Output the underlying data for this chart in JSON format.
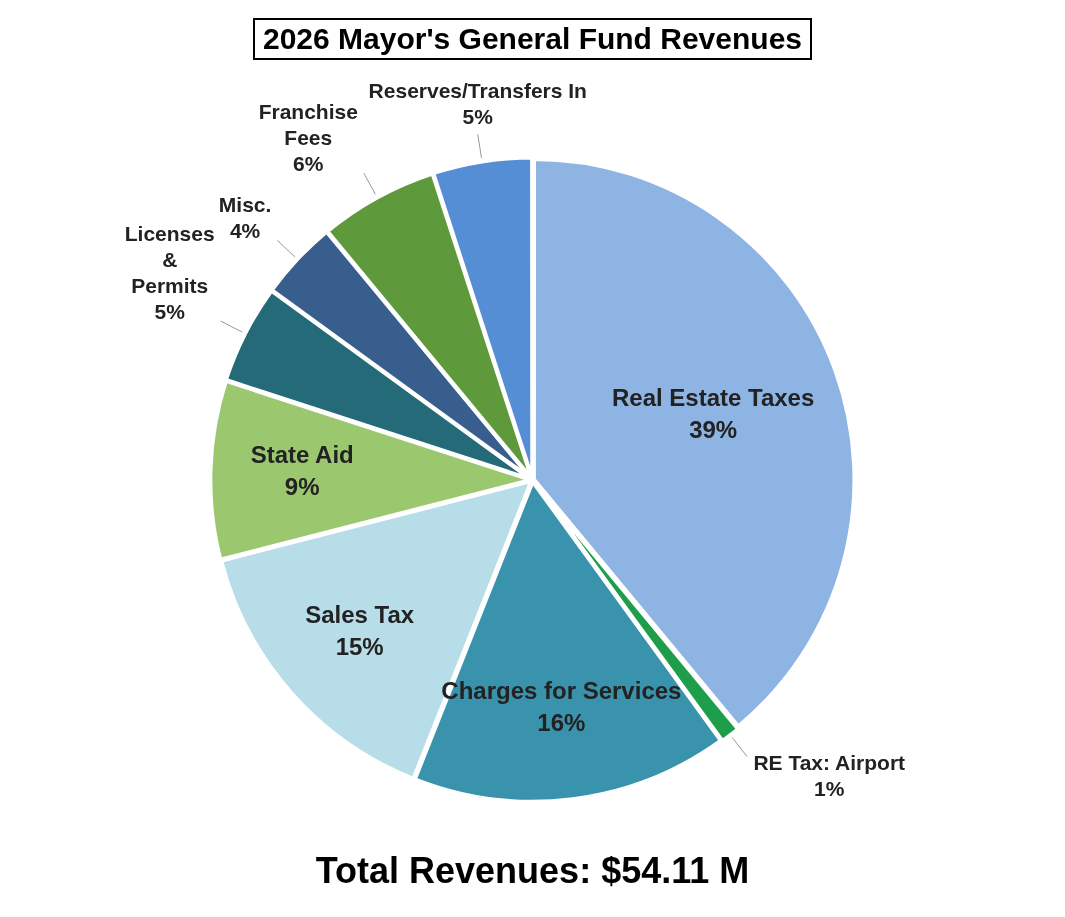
{
  "chart_data": {
    "type": "pie",
    "title": "2026 Mayor's General Fund Revenues",
    "categories": [
      "Real Estate Taxes",
      "RE Tax: Airport",
      "Charges for Services",
      "Sales Tax",
      "State Aid",
      "Licenses & Permits",
      "Misc.",
      "Franchise Fees",
      "Reserves/Transfers In"
    ],
    "values": [
      39,
      1,
      16,
      15,
      9,
      5,
      4,
      6,
      5
    ],
    "value_labels": [
      "39%",
      "1%",
      "16%",
      "15%",
      "9%",
      "5%",
      "4%",
      "6%",
      "5%"
    ],
    "colors": [
      "#8eb4e3",
      "#1e9e4a",
      "#3a93ad",
      "#b7dde8",
      "#9bc86f",
      "#246a78",
      "#385e8e",
      "#5e9a3c",
      "#558ed5"
    ],
    "annotations": [
      "Total Revenues: $54.11 M"
    ]
  }
}
